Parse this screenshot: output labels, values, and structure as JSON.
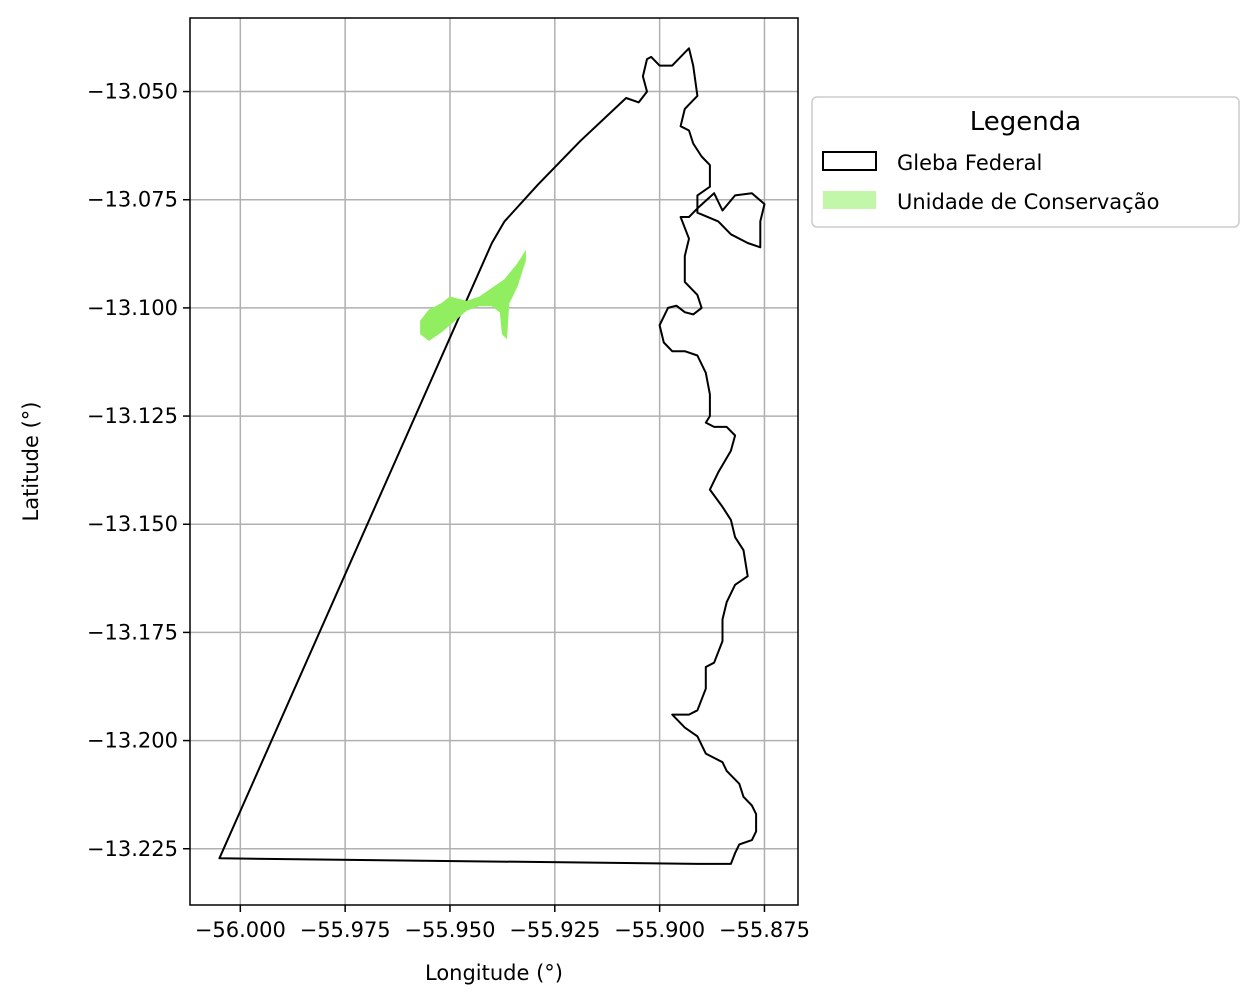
{
  "chart_data": {
    "type": "map",
    "xlabel": "Longitude (°)",
    "ylabel": "Latitude (°)",
    "xlim": [
      -56.012,
      -55.867
    ],
    "ylim": [
      -13.238,
      -13.033
    ],
    "grid": true,
    "x_ticks": [
      {
        "value": -56.0,
        "label": "−56.000"
      },
      {
        "value": -55.975,
        "label": "−55.975"
      },
      {
        "value": -55.95,
        "label": "−55.950"
      },
      {
        "value": -55.925,
        "label": "−55.925"
      },
      {
        "value": -55.9,
        "label": "−55.900"
      },
      {
        "value": -55.875,
        "label": "−55.875"
      }
    ],
    "y_ticks": [
      {
        "value": -13.05,
        "label": "−13.050"
      },
      {
        "value": -13.075,
        "label": "−13.075"
      },
      {
        "value": -13.1,
        "label": "−13.100"
      },
      {
        "value": -13.125,
        "label": "−13.125"
      },
      {
        "value": -13.15,
        "label": "−13.150"
      },
      {
        "value": -13.175,
        "label": "−13.175"
      },
      {
        "value": -13.2,
        "label": "−13.200"
      },
      {
        "value": -13.225,
        "label": "−13.225"
      }
    ],
    "legend": {
      "title": "Legenda",
      "placement": "outside-upper-right",
      "entries": [
        {
          "label": "Gleba Federal",
          "style": "outline",
          "color": "#000000"
        },
        {
          "label": "Unidade de Conservação",
          "style": "fill",
          "color": "#90EE60"
        }
      ]
    },
    "series": [
      {
        "name": "Gleba Federal",
        "kind": "polygon-outline",
        "color": "#000000",
        "points": [
          [
            -56.005,
            -13.2272
          ],
          [
            -55.94,
            -13.085
          ],
          [
            -55.937,
            -13.08
          ],
          [
            -55.929,
            -13.0715
          ],
          [
            -55.919,
            -13.0615
          ],
          [
            -55.908,
            -13.0515
          ],
          [
            -55.905,
            -13.0525
          ],
          [
            -55.903,
            -13.05
          ],
          [
            -55.904,
            -13.0465
          ],
          [
            -55.903,
            -13.0425
          ],
          [
            -55.902,
            -13.042
          ],
          [
            -55.9,
            -13.044
          ],
          [
            -55.897,
            -13.044
          ],
          [
            -55.894,
            -13.041
          ],
          [
            -55.893,
            -13.04
          ],
          [
            -55.892,
            -13.044
          ],
          [
            -55.891,
            -13.051
          ],
          [
            -55.892,
            -13.052
          ],
          [
            -55.894,
            -13.054
          ],
          [
            -55.895,
            -13.058
          ],
          [
            -55.893,
            -13.059
          ],
          [
            -55.892,
            -13.062
          ],
          [
            -55.89,
            -13.065
          ],
          [
            -55.888,
            -13.067
          ],
          [
            -55.888,
            -13.072
          ],
          [
            -55.891,
            -13.074
          ],
          [
            -55.891,
            -13.078
          ],
          [
            -55.886,
            -13.08
          ],
          [
            -55.883,
            -13.083
          ],
          [
            -55.879,
            -13.085
          ],
          [
            -55.876,
            -13.086
          ],
          [
            -55.876,
            -13.08
          ],
          [
            -55.875,
            -13.076
          ],
          [
            -55.878,
            -13.0735
          ],
          [
            -55.882,
            -13.074
          ],
          [
            -55.885,
            -13.0775
          ],
          [
            -55.887,
            -13.0735
          ],
          [
            -55.891,
            -13.077
          ],
          [
            -55.893,
            -13.079
          ],
          [
            -55.895,
            -13.079
          ],
          [
            -55.893,
            -13.084
          ],
          [
            -55.894,
            -13.088
          ],
          [
            -55.894,
            -13.094
          ],
          [
            -55.891,
            -13.097
          ],
          [
            -55.89,
            -13.1
          ],
          [
            -55.892,
            -13.1015
          ],
          [
            -55.894,
            -13.101
          ],
          [
            -55.896,
            -13.0995
          ],
          [
            -55.898,
            -13.1
          ],
          [
            -55.9,
            -13.104
          ],
          [
            -55.899,
            -13.108
          ],
          [
            -55.897,
            -13.11
          ],
          [
            -55.894,
            -13.11
          ],
          [
            -55.891,
            -13.111
          ],
          [
            -55.889,
            -13.115
          ],
          [
            -55.888,
            -13.12
          ],
          [
            -55.888,
            -13.125
          ],
          [
            -55.889,
            -13.1265
          ],
          [
            -55.887,
            -13.1275
          ],
          [
            -55.884,
            -13.1275
          ],
          [
            -55.882,
            -13.1295
          ],
          [
            -55.883,
            -13.133
          ],
          [
            -55.886,
            -13.138
          ],
          [
            -55.888,
            -13.142
          ],
          [
            -55.885,
            -13.146
          ],
          [
            -55.883,
            -13.149
          ],
          [
            -55.882,
            -13.153
          ],
          [
            -55.88,
            -13.156
          ],
          [
            -55.879,
            -13.162
          ],
          [
            -55.882,
            -13.164
          ],
          [
            -55.884,
            -13.168
          ],
          [
            -55.885,
            -13.172
          ],
          [
            -55.885,
            -13.177
          ],
          [
            -55.887,
            -13.182
          ],
          [
            -55.889,
            -13.183
          ],
          [
            -55.889,
            -13.188
          ],
          [
            -55.891,
            -13.193
          ],
          [
            -55.893,
            -13.194
          ],
          [
            -55.897,
            -13.194
          ],
          [
            -55.894,
            -13.197
          ],
          [
            -55.891,
            -13.199
          ],
          [
            -55.889,
            -13.203
          ],
          [
            -55.887,
            -13.204
          ],
          [
            -55.885,
            -13.205
          ],
          [
            -55.884,
            -13.207
          ],
          [
            -55.881,
            -13.21
          ],
          [
            -55.88,
            -13.213
          ],
          [
            -55.878,
            -13.215
          ],
          [
            -55.877,
            -13.217
          ],
          [
            -55.877,
            -13.221
          ],
          [
            -55.878,
            -13.223
          ],
          [
            -55.881,
            -13.224
          ],
          [
            -55.882,
            -13.226
          ],
          [
            -55.883,
            -13.2285
          ],
          [
            -55.891,
            -13.2285
          ],
          [
            -56.005,
            -13.2272
          ]
        ]
      },
      {
        "name": "Unidade de Conservação",
        "kind": "polygon-fill",
        "color": "#90EE60",
        "points": [
          [
            -55.955,
            -13.1075
          ],
          [
            -55.957,
            -13.106
          ],
          [
            -55.957,
            -13.103
          ],
          [
            -55.955,
            -13.1005
          ],
          [
            -55.952,
            -13.099
          ],
          [
            -55.95,
            -13.0975
          ],
          [
            -55.948,
            -13.098
          ],
          [
            -55.946,
            -13.0985
          ],
          [
            -55.943,
            -13.0975
          ],
          [
            -55.94,
            -13.0955
          ],
          [
            -55.937,
            -13.0935
          ],
          [
            -55.934,
            -13.09
          ],
          [
            -55.932,
            -13.087
          ],
          [
            -55.932,
            -13.089
          ],
          [
            -55.934,
            -13.095
          ],
          [
            -55.936,
            -13.099
          ],
          [
            -55.9365,
            -13.107
          ],
          [
            -55.9375,
            -13.106
          ],
          [
            -55.938,
            -13.101
          ],
          [
            -55.94,
            -13.0995
          ],
          [
            -55.943,
            -13.0995
          ],
          [
            -55.946,
            -13.1005
          ],
          [
            -55.949,
            -13.103
          ],
          [
            -55.952,
            -13.1055
          ],
          [
            -55.955,
            -13.1075
          ]
        ]
      }
    ]
  }
}
